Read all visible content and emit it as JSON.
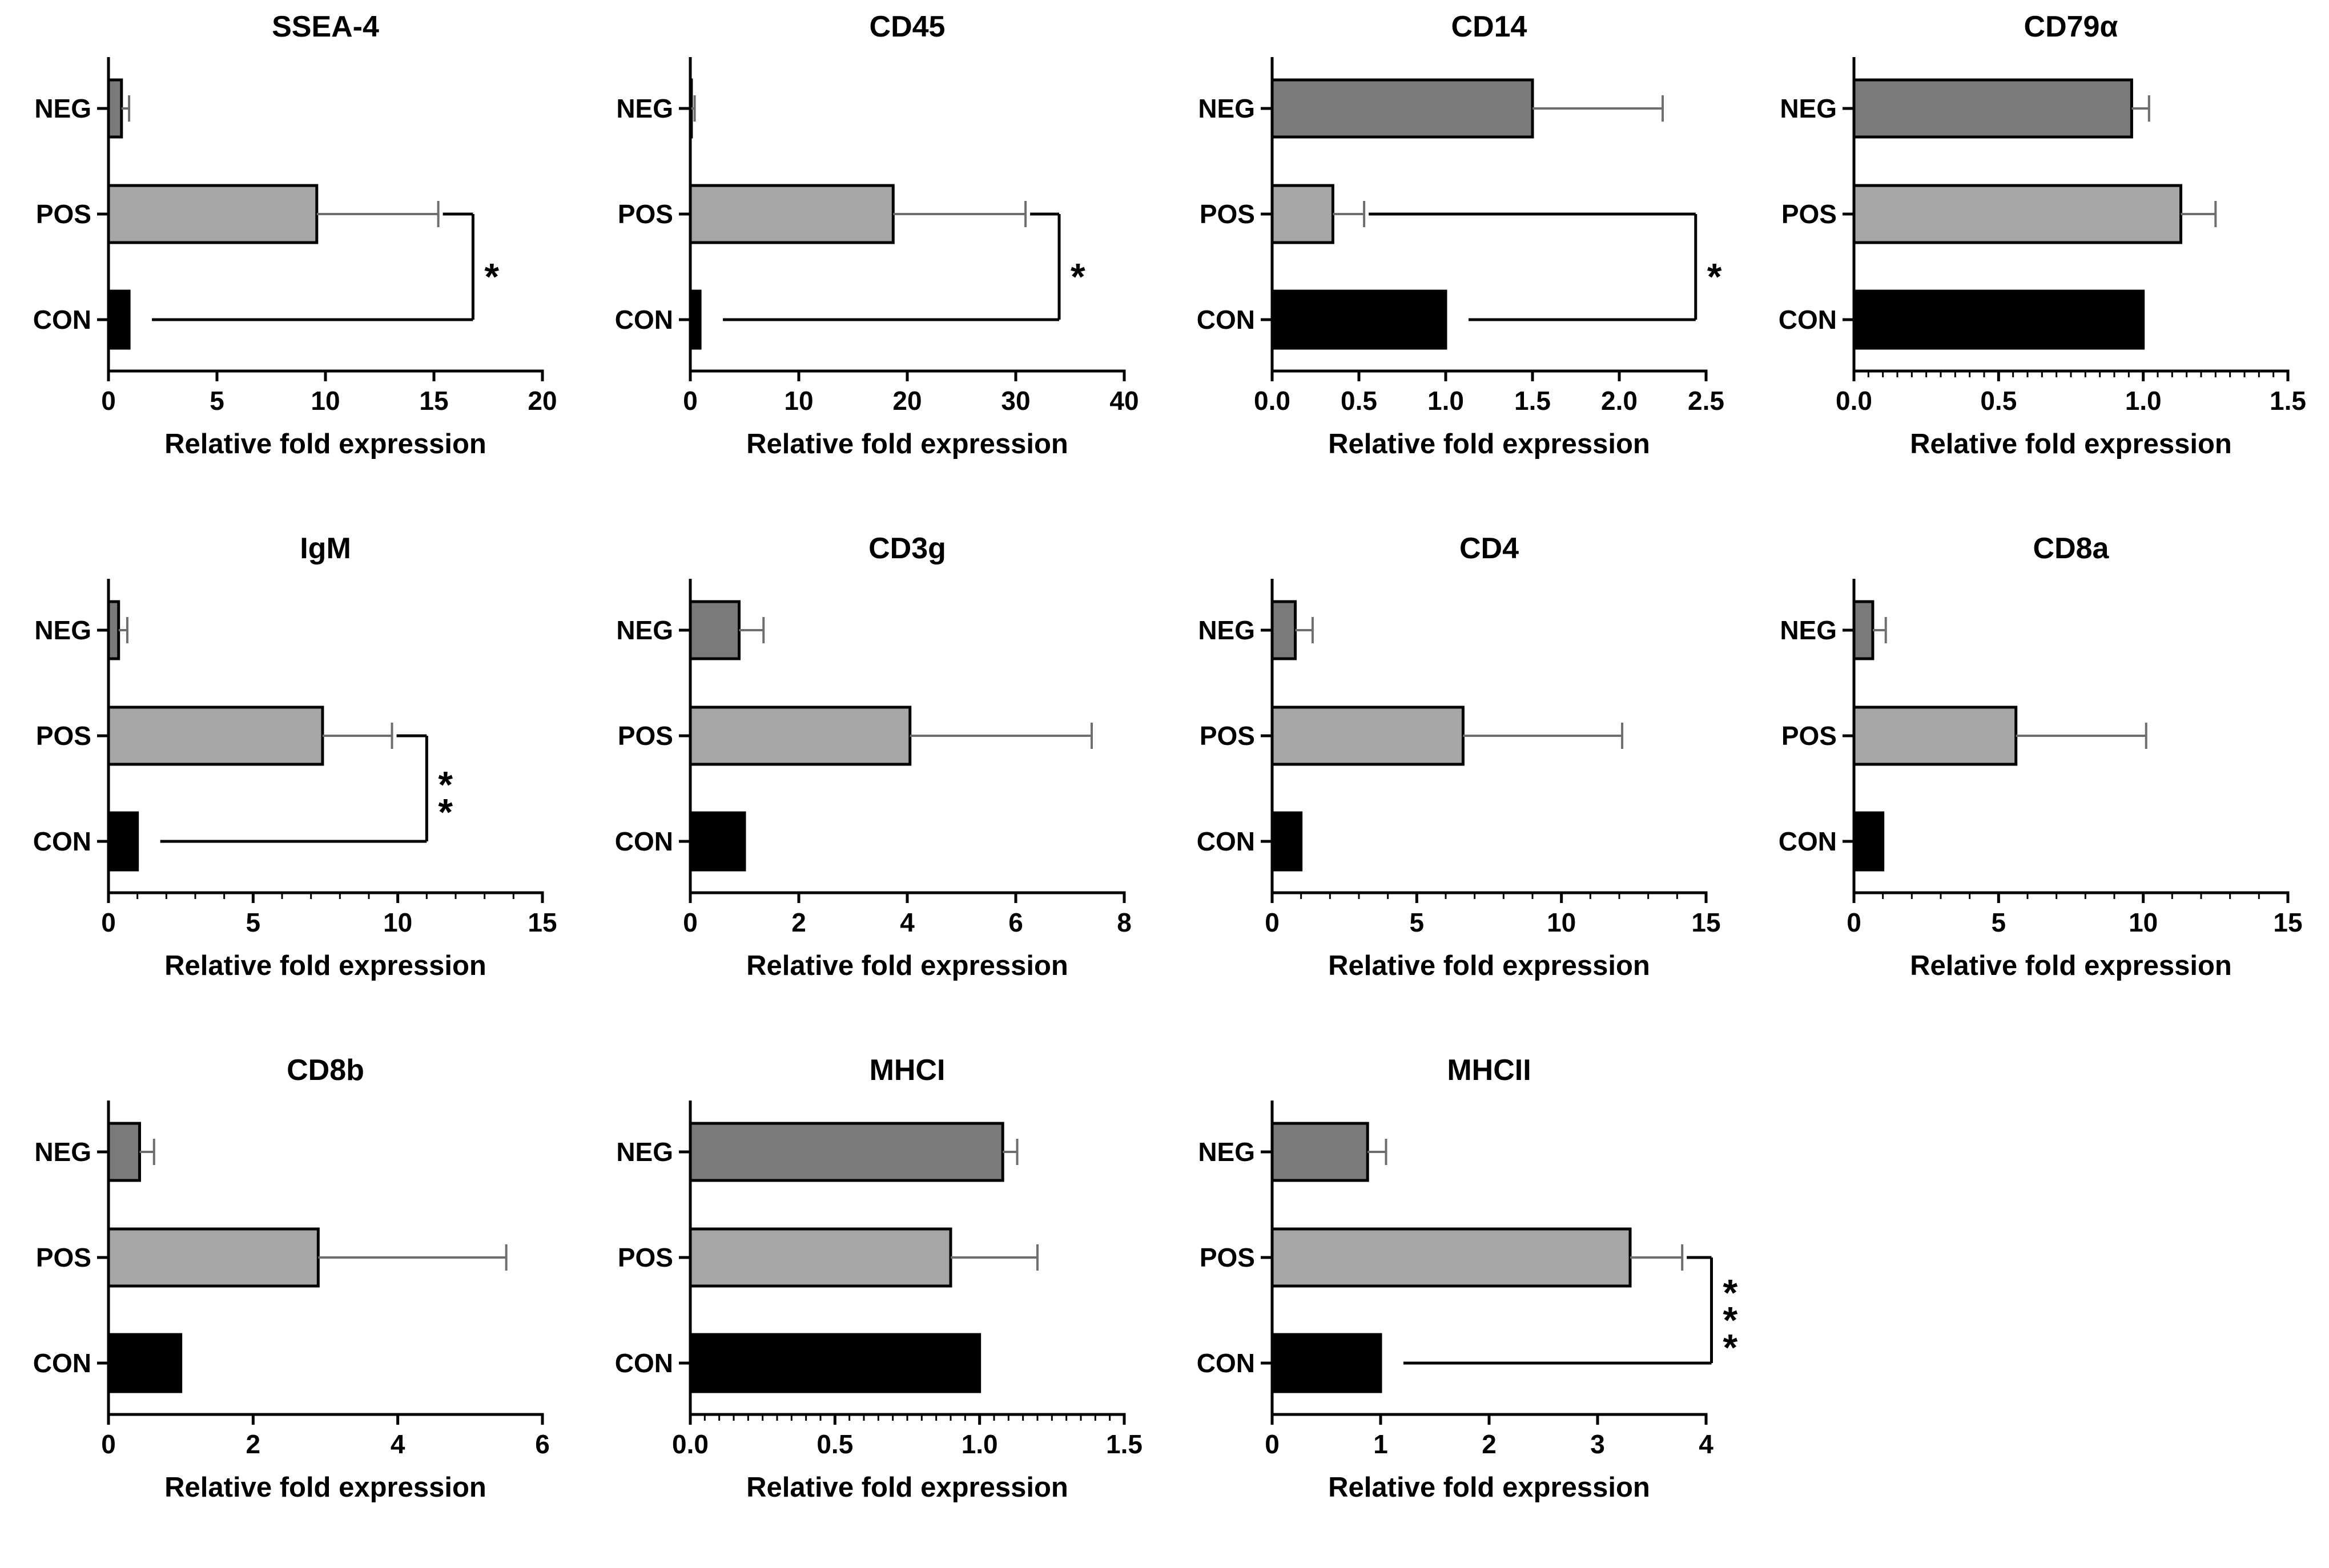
{
  "figure": {
    "background": "#ffffff",
    "categories": [
      "NEG",
      "POS",
      "CON"
    ],
    "xlabel": "Relative fold expression",
    "colors": {
      "neg_bar": "#7a7a7a",
      "pos_bar": "#a6a6a6",
      "con_bar": "#000000",
      "bar_outline": "#000000",
      "axis": "#000000",
      "error_bar": "#6e6e6e",
      "significance": "#000000"
    },
    "grid": {
      "cols": 4,
      "rows": 3,
      "empty_cells": 1
    }
  },
  "chart_data": [
    {
      "type": "bar",
      "orientation": "horizontal",
      "title": "SSEA-4",
      "categories": [
        "NEG",
        "POS",
        "CON"
      ],
      "values": [
        0.6,
        9.6,
        0.95
      ],
      "errors_plus": [
        0.35,
        5.6,
        0
      ],
      "xlim": [
        0,
        20
      ],
      "xticks": [
        0,
        5,
        10,
        15,
        20
      ],
      "xtick_labels": [
        "0",
        "5",
        "10",
        "15",
        "20"
      ],
      "minor_tick_step": null,
      "xlabel": "Relative fold expression",
      "significance": {
        "label": "*",
        "compares": [
          "POS",
          "CON"
        ],
        "x": 16.8
      }
    },
    {
      "type": "bar",
      "orientation": "horizontal",
      "title": "CD45",
      "categories": [
        "NEG",
        "POS",
        "CON"
      ],
      "values": [
        0.1,
        18.7,
        0.9
      ],
      "errors_plus": [
        0.3,
        12.2,
        0
      ],
      "xlim": [
        0,
        40
      ],
      "xticks": [
        0,
        10,
        20,
        30,
        40
      ],
      "xtick_labels": [
        "0",
        "10",
        "20",
        "30",
        "40"
      ],
      "minor_tick_step": null,
      "xlabel": "Relative fold expression",
      "significance": {
        "label": "*",
        "compares": [
          "POS",
          "CON"
        ],
        "x": 34
      }
    },
    {
      "type": "bar",
      "orientation": "horizontal",
      "title": "CD14",
      "categories": [
        "NEG",
        "POS",
        "CON"
      ],
      "values": [
        1.5,
        0.35,
        1.0
      ],
      "errors_plus": [
        0.75,
        0.18,
        0
      ],
      "xlim": [
        0,
        2.5
      ],
      "xticks": [
        0,
        0.5,
        1.0,
        1.5,
        2.0,
        2.5
      ],
      "xtick_labels": [
        "0.0",
        "0.5",
        "1.0",
        "1.5",
        "2.0",
        "2.5"
      ],
      "minor_tick_step": null,
      "xlabel": "Relative fold expression",
      "significance": {
        "label": "*",
        "compares": [
          "POS",
          "CON"
        ],
        "x": 2.44
      }
    },
    {
      "type": "bar",
      "orientation": "horizontal",
      "title": "CD79α",
      "categories": [
        "NEG",
        "POS",
        "CON"
      ],
      "values": [
        0.96,
        1.13,
        1.0
      ],
      "errors_plus": [
        0.06,
        0.12,
        0
      ],
      "xlim": [
        0,
        1.5
      ],
      "xticks": [
        0,
        0.5,
        1.0,
        1.5
      ],
      "xtick_labels": [
        "0.0",
        "0.5",
        "1.0",
        "1.5"
      ],
      "minor_tick_step": 0.05,
      "xlabel": "Relative fold expression",
      "significance": null
    },
    {
      "type": "bar",
      "orientation": "horizontal",
      "title": "IgM",
      "categories": [
        "NEG",
        "POS",
        "CON"
      ],
      "values": [
        0.35,
        7.4,
        1.0
      ],
      "errors_plus": [
        0.3,
        2.4,
        0
      ],
      "xlim": [
        0,
        15
      ],
      "xticks": [
        0,
        5,
        10,
        15
      ],
      "xtick_labels": [
        "0",
        "5",
        "10",
        "15"
      ],
      "minor_tick_step": 1,
      "xlabel": "Relative fold expression",
      "significance": {
        "label": "**",
        "compares": [
          "POS",
          "CON"
        ],
        "x": 11
      }
    },
    {
      "type": "bar",
      "orientation": "horizontal",
      "title": "CD3g",
      "categories": [
        "NEG",
        "POS",
        "CON"
      ],
      "values": [
        0.9,
        4.05,
        1.0
      ],
      "errors_plus": [
        0.45,
        3.35,
        0
      ],
      "xlim": [
        0,
        8
      ],
      "xticks": [
        0,
        2,
        4,
        6,
        8
      ],
      "xtick_labels": [
        "0",
        "2",
        "4",
        "6",
        "8"
      ],
      "minor_tick_step": null,
      "xlabel": "Relative fold expression",
      "significance": null
    },
    {
      "type": "bar",
      "orientation": "horizontal",
      "title": "CD4",
      "categories": [
        "NEG",
        "POS",
        "CON"
      ],
      "values": [
        0.8,
        6.6,
        1.0
      ],
      "errors_plus": [
        0.6,
        5.5,
        0
      ],
      "xlim": [
        0,
        15
      ],
      "xticks": [
        0,
        5,
        10,
        15
      ],
      "xtick_labels": [
        "0",
        "5",
        "10",
        "15"
      ],
      "minor_tick_step": 1,
      "xlabel": "Relative fold expression",
      "significance": null
    },
    {
      "type": "bar",
      "orientation": "horizontal",
      "title": "CD8a",
      "categories": [
        "NEG",
        "POS",
        "CON"
      ],
      "values": [
        0.65,
        5.6,
        1.0
      ],
      "errors_plus": [
        0.45,
        4.5,
        0
      ],
      "xlim": [
        0,
        15
      ],
      "xticks": [
        0,
        5,
        10,
        15
      ],
      "xtick_labels": [
        "0",
        "5",
        "10",
        "15"
      ],
      "minor_tick_step": 1,
      "xlabel": "Relative fold expression",
      "significance": null
    },
    {
      "type": "bar",
      "orientation": "horizontal",
      "title": "CD8b",
      "categories": [
        "NEG",
        "POS",
        "CON"
      ],
      "values": [
        0.43,
        2.9,
        1.0
      ],
      "errors_plus": [
        0.2,
        2.6,
        0
      ],
      "xlim": [
        0,
        6
      ],
      "xticks": [
        0,
        2,
        4,
        6
      ],
      "xtick_labels": [
        "0",
        "2",
        "4",
        "6"
      ],
      "minor_tick_step": null,
      "xlabel": "Relative fold expression",
      "significance": null
    },
    {
      "type": "bar",
      "orientation": "horizontal",
      "title": "MHCI",
      "categories": [
        "NEG",
        "POS",
        "CON"
      ],
      "values": [
        1.08,
        0.9,
        1.0
      ],
      "errors_plus": [
        0.05,
        0.3,
        0
      ],
      "xlim": [
        0,
        1.5
      ],
      "xticks": [
        0,
        0.5,
        1.0,
        1.5
      ],
      "xtick_labels": [
        "0.0",
        "0.5",
        "1.0",
        "1.5"
      ],
      "minor_tick_step": 0.05,
      "xlabel": "Relative fold expression",
      "significance": null
    },
    {
      "type": "bar",
      "orientation": "horizontal",
      "title": "MHCII",
      "categories": [
        "NEG",
        "POS",
        "CON"
      ],
      "values": [
        0.88,
        3.3,
        1.0
      ],
      "errors_plus": [
        0.17,
        0.48,
        0
      ],
      "xlim": [
        0,
        4
      ],
      "xticks": [
        0,
        1,
        2,
        3,
        4
      ],
      "xtick_labels": [
        "0",
        "1",
        "2",
        "3",
        "4"
      ],
      "minor_tick_step": null,
      "xlabel": "Relative fold expression",
      "significance": {
        "label": "***",
        "compares": [
          "POS",
          "CON"
        ],
        "x": 4.05
      }
    }
  ]
}
